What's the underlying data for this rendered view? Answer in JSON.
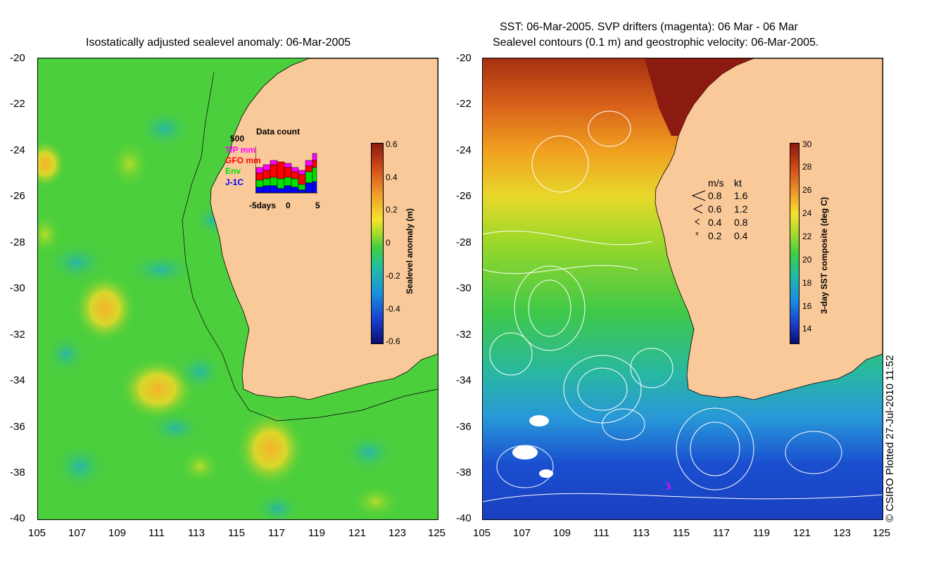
{
  "left_panel": {
    "title": "Isostatically adjusted sealevel anomaly: 06-Mar-2005",
    "x_ticks": [
      "105",
      "107",
      "109",
      "111",
      "113",
      "115",
      "117",
      "119",
      "121",
      "123",
      "125"
    ],
    "y_ticks": [
      "-20",
      "-22",
      "-24",
      "-26",
      "-28",
      "-30",
      "-32",
      "-34",
      "-36",
      "-38",
      "-40"
    ],
    "colorbar": {
      "title": "Sealevel anomaly (m)",
      "ticks": [
        "0.6",
        "0.4",
        "0.2",
        "0",
        "-0.2",
        "-0.4",
        "-0.6"
      ]
    },
    "data_count": {
      "title": "Data count",
      "y_max": "500",
      "x_labels": [
        "-5days",
        "0",
        "5"
      ],
      "legend": [
        {
          "label": "T/P mm",
          "color": "#ff00ff"
        },
        {
          "label": "GFO mm",
          "color": "#ff0000"
        },
        {
          "label": "Env",
          "color": "#00dd00"
        },
        {
          "label": "J-1C",
          "color": "#0000ff"
        }
      ]
    }
  },
  "right_panel": {
    "title_line1": "SST: 06-Mar-2005. SVP drifters (magenta): 06 Mar - 06 Mar",
    "title_line2": "Sealevel contours (0.1 m) and geostrophic velocity: 06-Mar-2005.",
    "x_ticks": [
      "105",
      "107",
      "109",
      "111",
      "113",
      "115",
      "117",
      "119",
      "121",
      "123",
      "125"
    ],
    "y_ticks": [
      "-20",
      "-22",
      "-24",
      "-26",
      "-28",
      "-30",
      "-32",
      "-34",
      "-36",
      "-38",
      "-40"
    ],
    "colorbar": {
      "title": "3-day SST composite (deg C)",
      "ticks": [
        "30",
        "28",
        "26",
        "24",
        "22",
        "20",
        "18",
        "16",
        "14"
      ]
    },
    "speed_legend": {
      "headers": [
        "m/s",
        "kt"
      ],
      "rows": [
        {
          "ms": "0.8",
          "kt": "1.6"
        },
        {
          "ms": "0.6",
          "kt": "1.2"
        },
        {
          "ms": "0.4",
          "kt": "0.8"
        },
        {
          "ms": "0.2",
          "kt": "0.4"
        }
      ]
    }
  },
  "credit": "© CSIRO Plotted 27-Jul-2010 11:52",
  "colors": {
    "land": "#f9c99a",
    "ocean_base": "#4ccf3c",
    "sst_warm": "#a52a00",
    "sst_cold": "#1a3fcf"
  }
}
